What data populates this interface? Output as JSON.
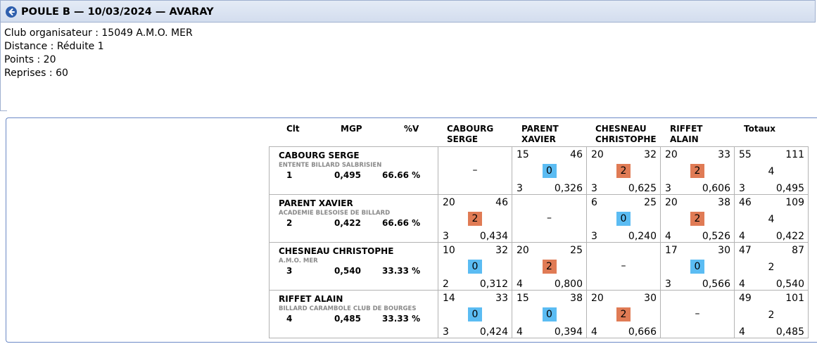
{
  "header": {
    "title": "POULE B — 10/03/2024 — AVARAY",
    "back_icon": "arrow-left-circle-icon"
  },
  "info": [
    "Club organisateur : 15049 A.M.O. MER",
    "Distance : Réduite 1",
    "Points : 20",
    "Reprises : 60"
  ],
  "table": {
    "columns": {
      "clt": "Clt",
      "mgp": "MGP",
      "pv": "%V",
      "totaux": "Totaux"
    },
    "opponent_headers": [
      [
        "CABOURG",
        "SERGE"
      ],
      [
        "PARENT",
        "XAVIER"
      ],
      [
        "CHESNEAU",
        "CHRISTOPHE"
      ],
      [
        "RIFFET",
        "ALAIN"
      ]
    ],
    "colors": {
      "win": "#e07b55",
      "loss": "#5bbcf3"
    },
    "rows": [
      {
        "name": "CABOURG SERGE",
        "club": "ENTENTE BILLARD SALBRISIEN",
        "clt": "1",
        "mgp": "0,495",
        "pv": "66.66 %",
        "matches": [
          {
            "self": true,
            "dash": "–"
          },
          {
            "points": "15",
            "score": "46",
            "result": "0",
            "reprises": "3",
            "moyenne": "0,326"
          },
          {
            "points": "20",
            "score": "32",
            "result": "2",
            "reprises": "3",
            "moyenne": "0,625"
          },
          {
            "points": "20",
            "score": "33",
            "result": "2",
            "reprises": "3",
            "moyenne": "0,606"
          }
        ],
        "totals": {
          "points": "55",
          "score": "111",
          "result": "4",
          "reprises": "3",
          "moyenne": "0,495"
        }
      },
      {
        "name": "PARENT XAVIER",
        "club": "ACADEMIE BLESOISE DE BILLARD",
        "clt": "2",
        "mgp": "0,422",
        "pv": "66.66 %",
        "matches": [
          {
            "points": "20",
            "score": "46",
            "result": "2",
            "reprises": "3",
            "moyenne": "0,434"
          },
          {
            "self": true,
            "dash": "–"
          },
          {
            "points": "6",
            "score": "25",
            "result": "0",
            "reprises": "3",
            "moyenne": "0,240"
          },
          {
            "points": "20",
            "score": "38",
            "result": "2",
            "reprises": "4",
            "moyenne": "0,526"
          }
        ],
        "totals": {
          "points": "46",
          "score": "109",
          "result": "4",
          "reprises": "4",
          "moyenne": "0,422"
        }
      },
      {
        "name": "CHESNEAU CHRISTOPHE",
        "club": "A.M.O. MER",
        "clt": "3",
        "mgp": "0,540",
        "pv": "33.33 %",
        "matches": [
          {
            "points": "10",
            "score": "32",
            "result": "0",
            "reprises": "2",
            "moyenne": "0,312"
          },
          {
            "points": "20",
            "score": "25",
            "result": "2",
            "reprises": "4",
            "moyenne": "0,800"
          },
          {
            "self": true,
            "dash": "–"
          },
          {
            "points": "17",
            "score": "30",
            "result": "0",
            "reprises": "3",
            "moyenne": "0,566"
          }
        ],
        "totals": {
          "points": "47",
          "score": "87",
          "result": "2",
          "reprises": "4",
          "moyenne": "0,540"
        }
      },
      {
        "name": "RIFFET ALAIN",
        "club": "BILLARD CARAMBOLE CLUB DE BOURGES",
        "clt": "4",
        "mgp": "0,485",
        "pv": "33.33 %",
        "matches": [
          {
            "points": "14",
            "score": "33",
            "result": "0",
            "reprises": "3",
            "moyenne": "0,424"
          },
          {
            "points": "15",
            "score": "38",
            "result": "0",
            "reprises": "4",
            "moyenne": "0,394"
          },
          {
            "points": "20",
            "score": "30",
            "result": "2",
            "reprises": "4",
            "moyenne": "0,666"
          },
          {
            "self": true,
            "dash": "–"
          }
        ],
        "totals": {
          "points": "49",
          "score": "101",
          "result": "2",
          "reprises": "4",
          "moyenne": "0,485"
        }
      }
    ]
  }
}
